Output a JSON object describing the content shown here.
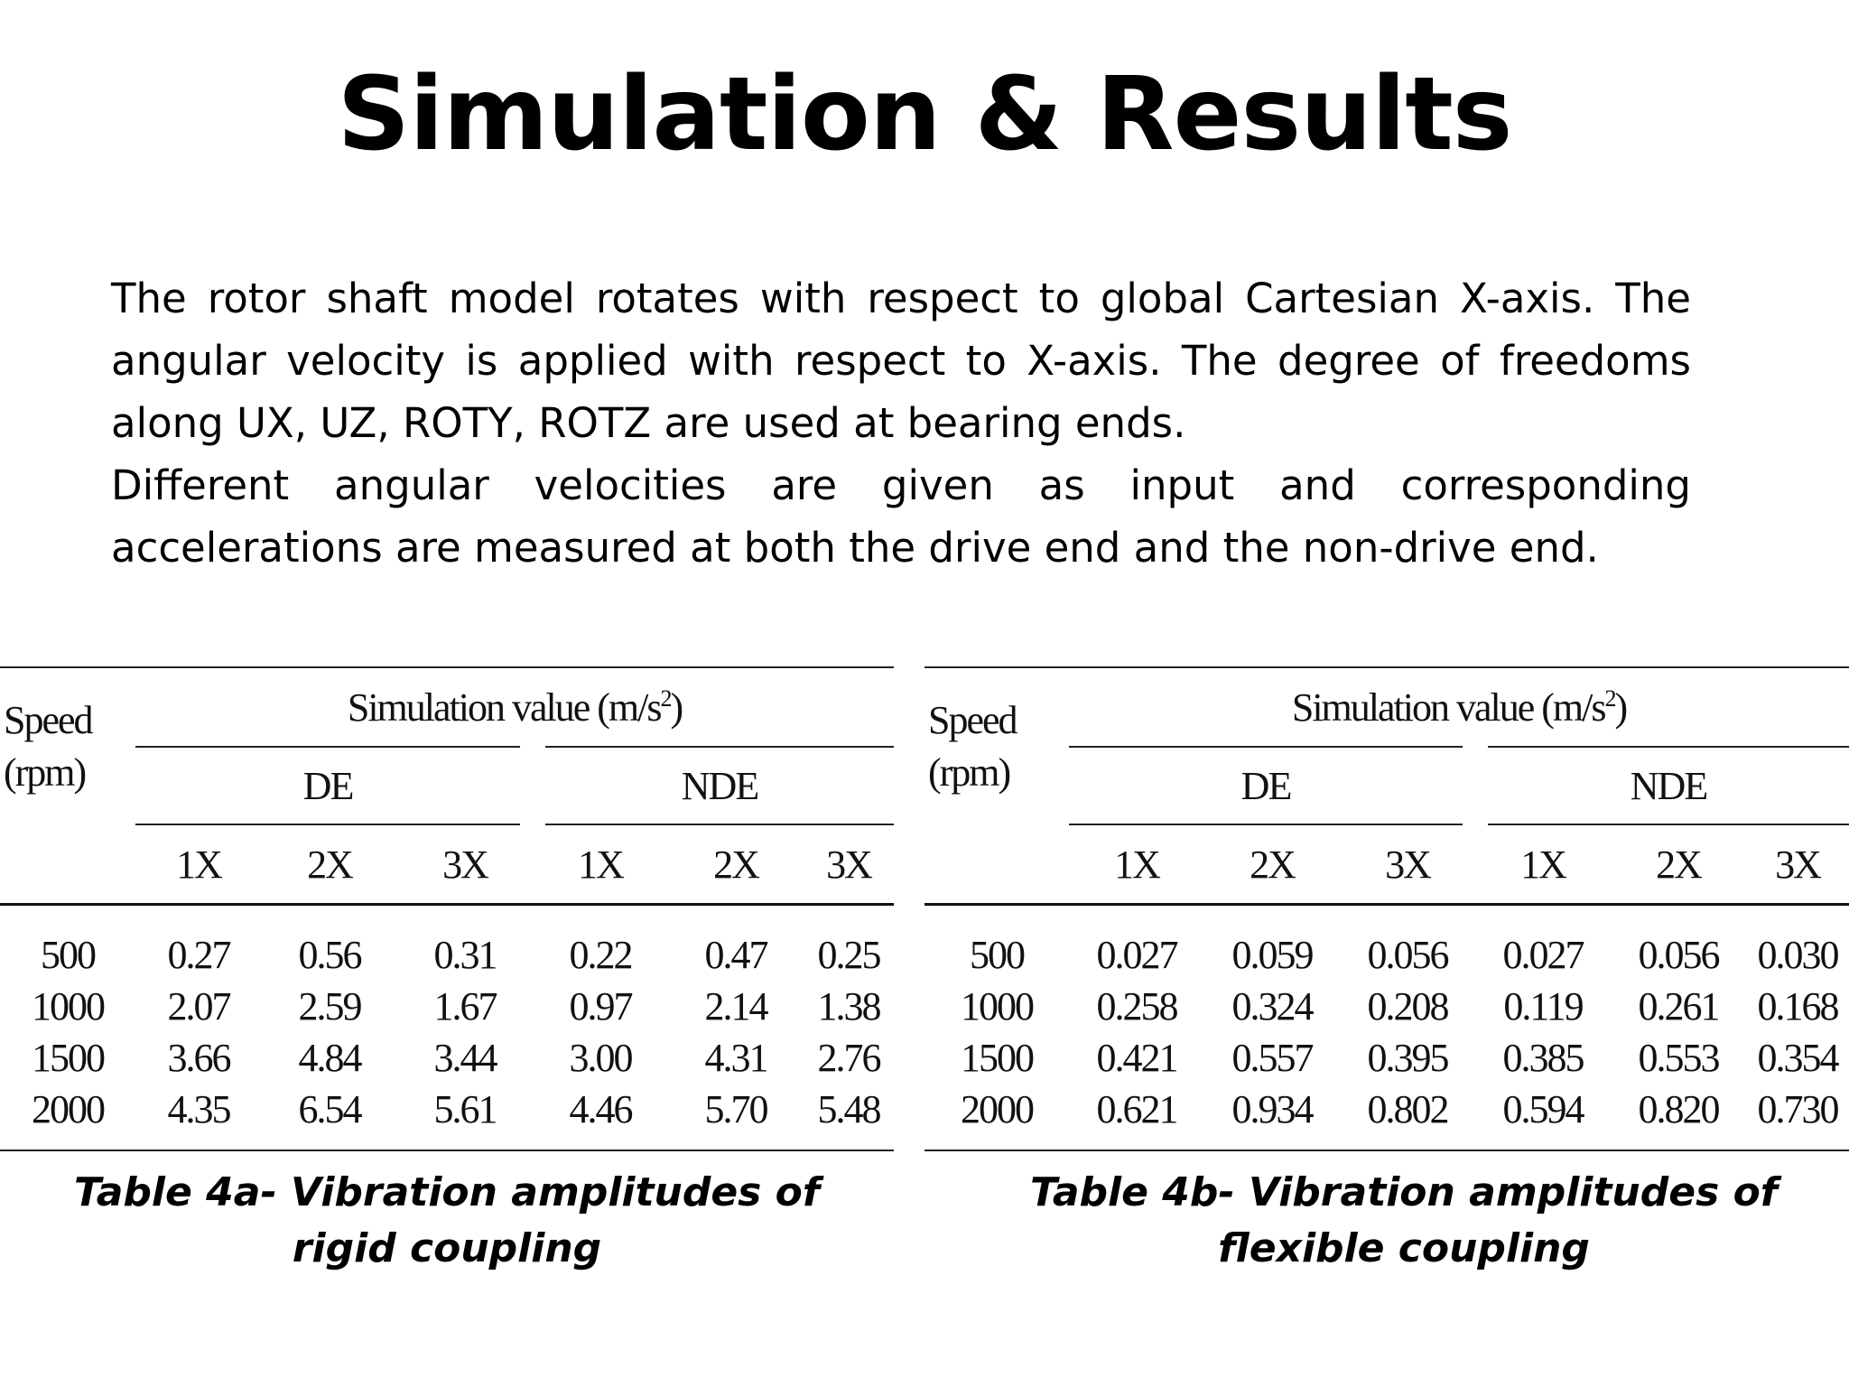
{
  "title": "Simulation & Results",
  "paragraphs": [
    "The rotor shaft model rotates with respect to global Cartesian X-axis. The angular velocity is applied with respect to X-axis. The degree of freedoms along UX, UZ, ROTY, ROTZ are used at bearing ends.",
    "Different angular velocities are given as input and corresponding accelerations are measured at both the drive end and the non-drive end."
  ],
  "tables": [
    {
      "header": {
        "speed_line1": "Speed",
        "speed_line2": "(rpm)",
        "group_prefix": "Simulation value (m/s",
        "group_sup": "2",
        "group_suffix": ")",
        "de": "DE",
        "nde": "NDE",
        "harmonics": [
          "1X",
          "2X",
          "3X",
          "1X",
          "2X",
          "3X"
        ]
      },
      "rows": [
        [
          "500",
          "0.27",
          "0.56",
          "0.31",
          "0.22",
          "0.47",
          "0.25"
        ],
        [
          "1000",
          "2.07",
          "2.59",
          "1.67",
          "0.97",
          "2.14",
          "1.38"
        ],
        [
          "1500",
          "3.66",
          "4.84",
          "3.44",
          "3.00",
          "4.31",
          "2.76"
        ],
        [
          "2000",
          "4.35",
          "6.54",
          "5.61",
          "4.46",
          "5.70",
          "5.48"
        ]
      ],
      "caption": "Table 4a- Vibration amplitudes of rigid coupling"
    },
    {
      "header": {
        "speed_line1": "Speed",
        "speed_line2": "(rpm)",
        "group_prefix": "Simulation value (m/s",
        "group_sup": "2",
        "group_suffix": ")",
        "de": "DE",
        "nde": "NDE",
        "harmonics": [
          "1X",
          "2X",
          "3X",
          "1X",
          "2X",
          "3X"
        ]
      },
      "rows": [
        [
          "500",
          "0.027",
          "0.059",
          "0.056",
          "0.027",
          "0.056",
          "0.030"
        ],
        [
          "1000",
          "0.258",
          "0.324",
          "0.208",
          "0.119",
          "0.261",
          "0.168"
        ],
        [
          "1500",
          "0.421",
          "0.557",
          "0.395",
          "0.385",
          "0.553",
          "0.354"
        ],
        [
          "2000",
          "0.621",
          "0.934",
          "0.802",
          "0.594",
          "0.820",
          "0.730"
        ]
      ],
      "caption": "Table 4b- Vibration amplitudes of flexible coupling"
    }
  ]
}
